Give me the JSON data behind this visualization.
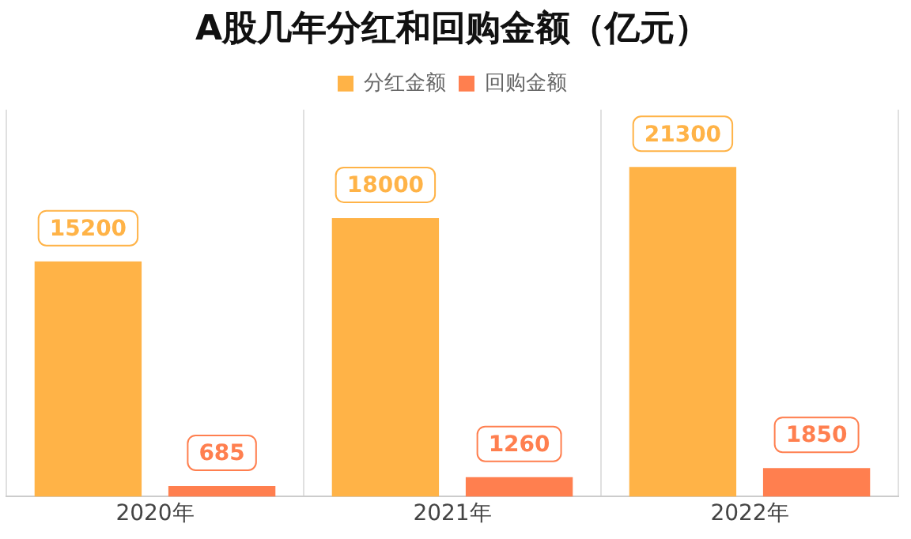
{
  "chart_data": {
    "type": "bar",
    "title": "A股几年分红和回购金额（亿元）",
    "categories": [
      "2020年",
      "2021年",
      "2022年"
    ],
    "series": [
      {
        "name": "分红金额",
        "color": "#ffb347",
        "values": [
          15200,
          18000,
          21300
        ]
      },
      {
        "name": "回购金额",
        "color": "#ff7f4f",
        "values": [
          685,
          1260,
          1850
        ]
      }
    ],
    "data_labels": true,
    "legend": "top",
    "grid": "x",
    "tick_labels": "x"
  }
}
